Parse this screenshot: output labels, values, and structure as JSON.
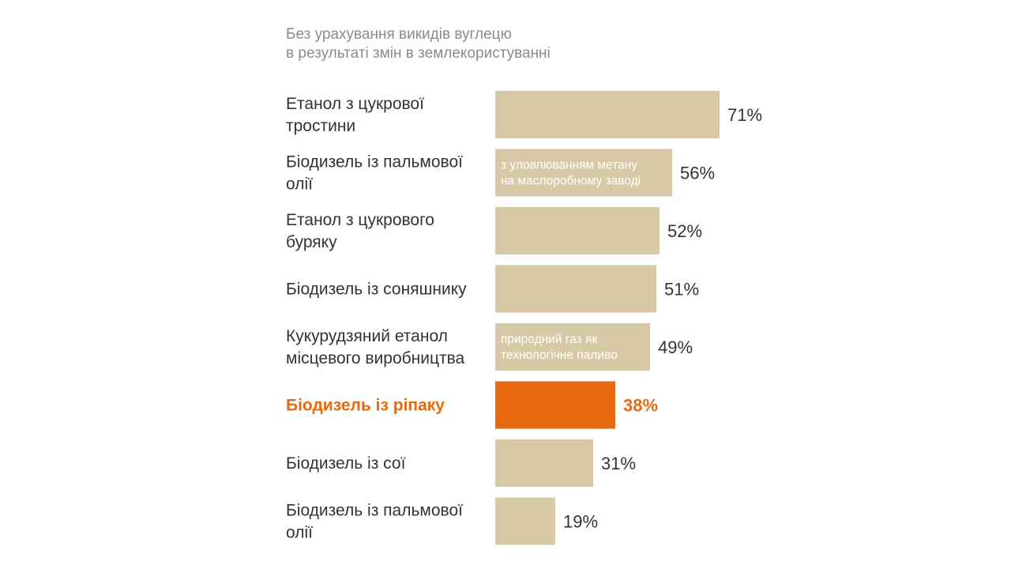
{
  "subtitle": {
    "line1": "Без урахування викидів вуглецю",
    "line2": "в результаті змін в землекористуванні"
  },
  "colors": {
    "bar": "#d8c9a6",
    "highlight": "#e86a10",
    "text": "#333333",
    "inner_text": "#ffffff",
    "subtitle": "#8a8a8a"
  },
  "chart_data": {
    "type": "bar",
    "orientation": "horizontal",
    "value_unit": "%",
    "xlim": [
      0,
      100
    ],
    "grid": false,
    "legend": "none",
    "categories": [
      [
        "Етанол з цукрової",
        "тростини"
      ],
      [
        "Біодизель із пальмової",
        "олії"
      ],
      [
        "Етанол з цукрового",
        "буряку"
      ],
      [
        "Біодизель із соняшнику"
      ],
      [
        "Кукурудзяний етанол",
        "місцевого виробництва"
      ],
      [
        "Біодизель із ріпаку"
      ],
      [
        "Біодизель із сої"
      ],
      [
        "Біодизель із пальмової",
        "олії"
      ]
    ],
    "values": [
      71,
      56,
      52,
      51,
      49,
      38,
      31,
      19
    ],
    "value_labels": [
      "71%",
      "56%",
      "52%",
      "51%",
      "49%",
      "38%",
      "31%",
      "19%"
    ],
    "highlight_index": 5,
    "annotations": [
      {
        "bar_index": 1,
        "lines": [
          "з уловлюванням метану",
          "на маслоробному заводі"
        ]
      },
      {
        "bar_index": 4,
        "lines": [
          "природний газ як",
          "технологічне паливо"
        ]
      }
    ]
  }
}
